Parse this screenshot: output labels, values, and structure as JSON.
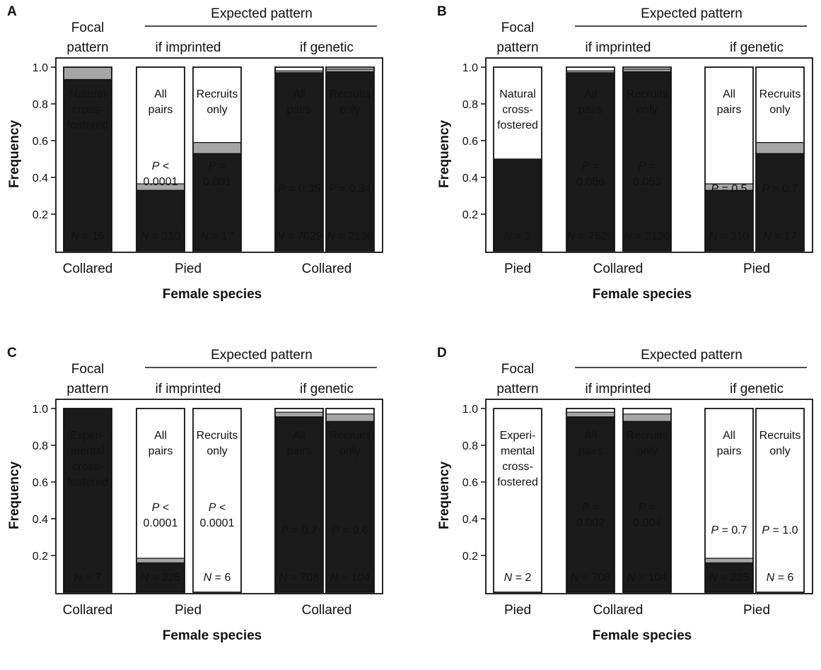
{
  "colors": {
    "pied": "#1a1a1a",
    "hybrid": "#a6a6a6",
    "collared": "#ffffff",
    "axis": "#111111"
  },
  "chart_data": [
    {
      "type": "bar",
      "panel": "A",
      "header": {
        "focal": "Focal pattern",
        "expected": "Expected pattern",
        "imprinted": "if imprinted",
        "genetic": "if genetic"
      },
      "ylabel": "Frequency",
      "xlabel": "Female species",
      "ylim": [
        0,
        1
      ],
      "yticks": [
        "0.2",
        "0.4",
        "0.6",
        "0.8",
        "1.0"
      ],
      "group_labels": [
        "Collared",
        "Pied",
        "Collared"
      ],
      "bars": [
        {
          "label": "Natural cross-fostered",
          "n": "N = 15",
          "p": "",
          "pied": 0.933,
          "hybrid": 0.067,
          "collared": 0.0
        },
        {
          "label": "All pairs",
          "n": "N = 310",
          "p": "P < 0.0001",
          "pied": 0.33,
          "hybrid": 0.035,
          "collared": 0.635
        },
        {
          "label": "Recruits only",
          "n": "N = 17",
          "p": "P = 0.001",
          "pied": 0.53,
          "hybrid": 0.06,
          "collared": 0.41
        },
        {
          "label": "All pairs",
          "n": "N = 7629",
          "p": "P = 0.35",
          "pied": 0.97,
          "hybrid": 0.01,
          "collared": 0.02
        },
        {
          "label": "Recruits only",
          "n": "N = 2136",
          "p": "P = 0.34",
          "pied": 0.975,
          "hybrid": 0.015,
          "collared": 0.01
        }
      ]
    },
    {
      "type": "bar",
      "panel": "B",
      "header": {
        "focal": "Focal pattern",
        "expected": "Expected pattern",
        "imprinted": "if imprinted",
        "genetic": "if genetic"
      },
      "ylabel": "Frequency",
      "xlabel": "Female species",
      "ylim": [
        0,
        1
      ],
      "yticks": [
        "0.2",
        "0.4",
        "0.6",
        "0.8",
        "1.0"
      ],
      "group_labels": [
        "Pied",
        "Collared",
        "Pied"
      ],
      "bars": [
        {
          "label": "Natural cross-fostered",
          "n": "N = 2",
          "p": "",
          "pied": 0.5,
          "hybrid": 0.0,
          "collared": 0.5
        },
        {
          "label": "All pairs",
          "n": "N = 7629",
          "p": "P = 0.056",
          "pied": 0.97,
          "hybrid": 0.01,
          "collared": 0.02
        },
        {
          "label": "Recruits only",
          "n": "N = 2136",
          "p": "P = 0.053",
          "pied": 0.975,
          "hybrid": 0.015,
          "collared": 0.01
        },
        {
          "label": "All pairs",
          "n": "N = 310",
          "p": "P = 0.5",
          "pied": 0.33,
          "hybrid": 0.035,
          "collared": 0.635
        },
        {
          "label": "Recruits only",
          "n": "N = 17",
          "p": "P = 0.7",
          "pied": 0.53,
          "hybrid": 0.06,
          "collared": 0.41
        }
      ]
    },
    {
      "type": "bar",
      "panel": "C",
      "header": {
        "focal": "Focal pattern",
        "expected": "Expected pattern",
        "imprinted": "if imprinted",
        "genetic": "if genetic"
      },
      "ylabel": "Frequency",
      "xlabel": "Female species",
      "ylim": [
        0,
        1
      ],
      "yticks": [
        "0.2",
        "0.4",
        "0.6",
        "0.8",
        "1.0"
      ],
      "group_labels": [
        "Collared",
        "Pied",
        "Collared"
      ],
      "bars": [
        {
          "label": "Experi-mental cross-fostered",
          "n": "N = 7",
          "p": "",
          "pied": 1.0,
          "hybrid": 0.0,
          "collared": 0.0
        },
        {
          "label": "All pairs",
          "n": "N = 225",
          "p": "P < 0.0001",
          "pied": 0.16,
          "hybrid": 0.025,
          "collared": 0.815
        },
        {
          "label": "Recruits only",
          "n": "N = 6",
          "p": "P < 0.0001",
          "pied": 0.0,
          "hybrid": 0.0,
          "collared": 1.0
        },
        {
          "label": "All pairs",
          "n": "N = 708",
          "p": "P = 0.7",
          "pied": 0.955,
          "hybrid": 0.025,
          "collared": 0.02
        },
        {
          "label": "Recruits only",
          "n": "N = 104",
          "p": "P = 0.6",
          "pied": 0.93,
          "hybrid": 0.04,
          "collared": 0.03
        }
      ]
    },
    {
      "type": "bar",
      "panel": "D",
      "header": {
        "focal": "Focal pattern",
        "expected": "Expected pattern",
        "imprinted": "if imprinted",
        "genetic": "if genetic"
      },
      "ylabel": "Frequency",
      "xlabel": "Female species",
      "ylim": [
        0,
        1
      ],
      "yticks": [
        "0.2",
        "0.4",
        "0.6",
        "0.8",
        "1.0"
      ],
      "group_labels": [
        "Pied",
        "Collared",
        "Pied"
      ],
      "bars": [
        {
          "label": "Experi-mental cross-fostered",
          "n": "N = 2",
          "p": "",
          "pied": 0.0,
          "hybrid": 0.0,
          "collared": 1.0
        },
        {
          "label": "All pairs",
          "n": "N = 708",
          "p": "P = 0.002",
          "pied": 0.955,
          "hybrid": 0.025,
          "collared": 0.02
        },
        {
          "label": "Recruits only",
          "n": "N = 104",
          "p": "P = 0.004",
          "pied": 0.93,
          "hybrid": 0.04,
          "collared": 0.03
        },
        {
          "label": "All pairs",
          "n": "N = 225",
          "p": "P = 0.7",
          "pied": 0.16,
          "hybrid": 0.025,
          "collared": 0.815
        },
        {
          "label": "Recruits only",
          "n": "N = 6",
          "p": "P = 1.0",
          "pied": 0.0,
          "hybrid": 0.0,
          "collared": 1.0
        }
      ]
    }
  ]
}
